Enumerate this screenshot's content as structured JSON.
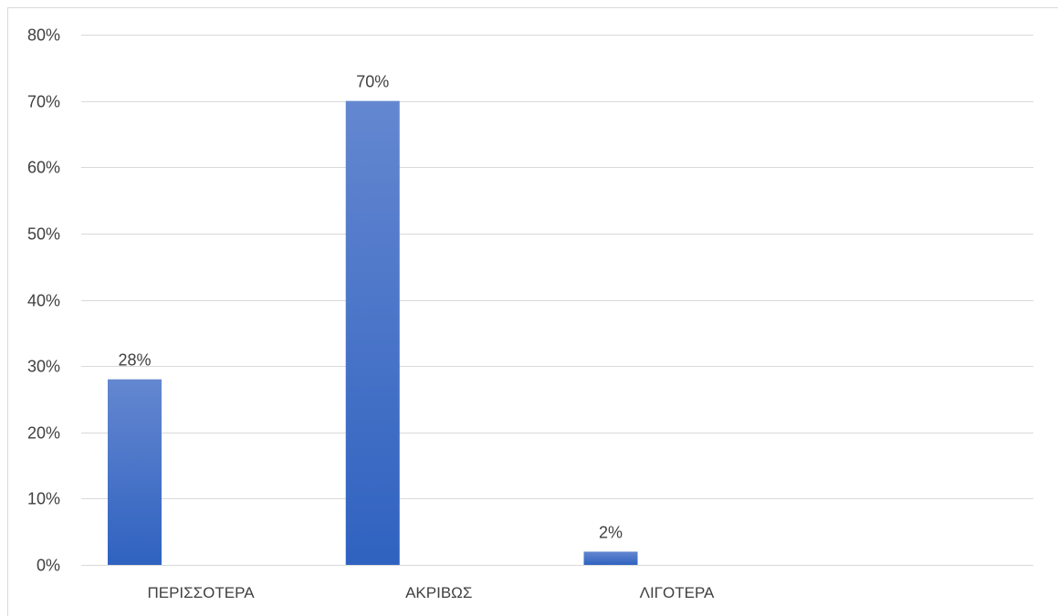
{
  "chart_data": {
    "type": "bar",
    "title": "",
    "xlabel": "",
    "ylabel": "",
    "categories": [
      "ΠΕΡΙΣΣΟΤΕΡΑ",
      "ΑΚΡΙΒΩΣ",
      "ΛΙΓΟΤΕΡΑ",
      ""
    ],
    "values": [
      28,
      70,
      2,
      null
    ],
    "data_labels": [
      "28%",
      "70%",
      "2%",
      ""
    ],
    "ylim": [
      0,
      80
    ],
    "y_ticks": [
      0,
      10,
      20,
      30,
      40,
      50,
      60,
      70,
      80
    ],
    "y_tick_labels": [
      "0%",
      "10%",
      "20%",
      "30%",
      "40%",
      "50%",
      "60%",
      "70%",
      "80%"
    ],
    "grid": true,
    "legend": "none",
    "colors": {
      "bar_top": "#6487d0",
      "bar_bottom": "#2f62c0",
      "grid": "#d9d9d9",
      "text": "#404040"
    }
  }
}
